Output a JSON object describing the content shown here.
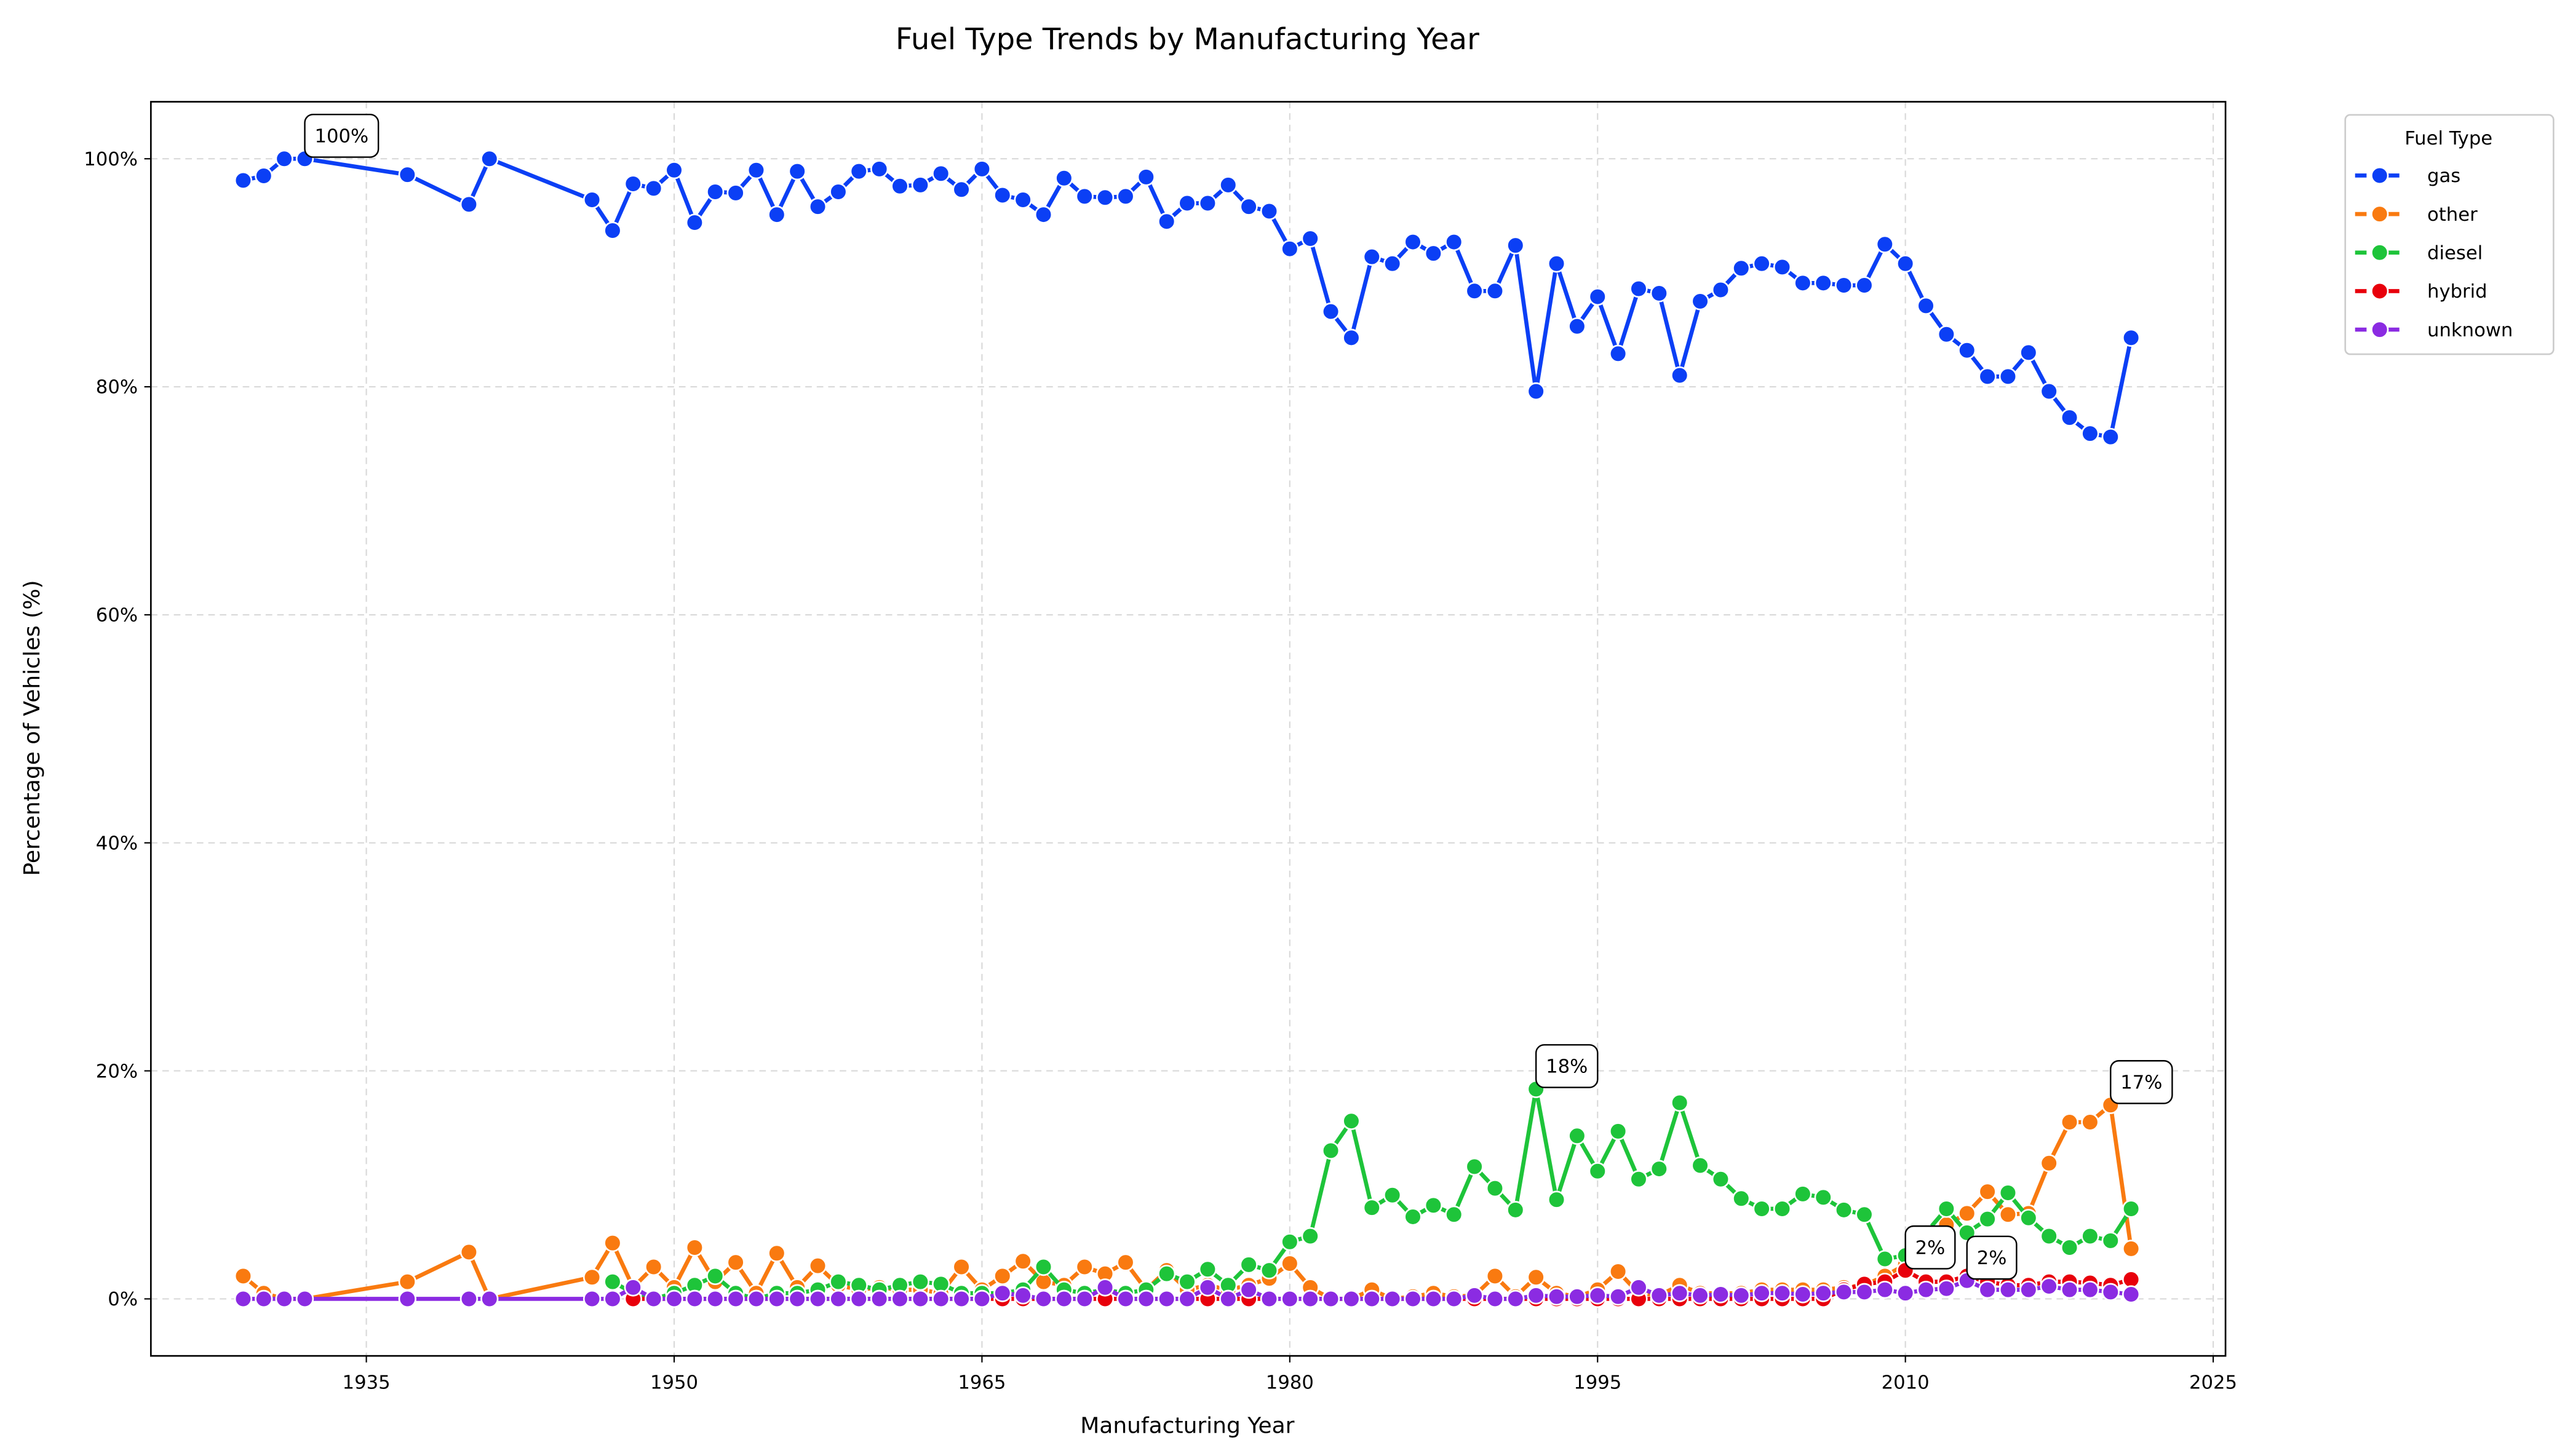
{
  "chart_data": {
    "type": "line",
    "title": "Fuel Type Trends by Manufacturing Year",
    "xlabel": "Manufacturing Year",
    "ylabel": "Percentage of Vehicles (%)",
    "legend_title": "Fuel Type",
    "legend_position": "outside upper right",
    "grid": true,
    "xlim": [
      1924.5,
      2025.6
    ],
    "ylim": [
      -5,
      105
    ],
    "xticks": [
      1935,
      1950,
      1965,
      1980,
      1995,
      2010,
      2025
    ],
    "yticks": [
      {
        "value": 0,
        "label": "0%"
      },
      {
        "value": 20,
        "label": "20%"
      },
      {
        "value": 40,
        "label": "40%"
      },
      {
        "value": 60,
        "label": "60%"
      },
      {
        "value": 80,
        "label": "80%"
      },
      {
        "value": 100,
        "label": "100%"
      }
    ],
    "x": [
      1929,
      1930,
      1931,
      1932,
      1937,
      1940,
      1941,
      1946,
      1947,
      1948,
      1949,
      1950,
      1951,
      1952,
      1953,
      1954,
      1955,
      1956,
      1957,
      1958,
      1959,
      1960,
      1961,
      1962,
      1963,
      1964,
      1965,
      1966,
      1967,
      1968,
      1969,
      1970,
      1971,
      1972,
      1973,
      1974,
      1975,
      1976,
      1977,
      1978,
      1979,
      1980,
      1981,
      1982,
      1983,
      1984,
      1985,
      1986,
      1987,
      1988,
      1989,
      1990,
      1991,
      1992,
      1993,
      1994,
      1995,
      1996,
      1997,
      1998,
      1999,
      2000,
      2001,
      2002,
      2003,
      2004,
      2005,
      2006,
      2007,
      2008,
      2009,
      2010,
      2011,
      2012,
      2013,
      2014,
      2015,
      2016,
      2017,
      2018,
      2019,
      2020,
      2021
    ],
    "series": [
      {
        "name": "gas",
        "color": "#0b3ff5",
        "values": [
          98.1,
          98.5,
          100,
          100,
          98.6,
          96,
          100,
          96.4,
          93.7,
          97.8,
          97.4,
          99,
          94.4,
          97.1,
          97,
          99,
          95.1,
          98.9,
          95.8,
          97.1,
          98.9,
          99.1,
          97.6,
          97.7,
          98.7,
          97.3,
          99.1,
          96.8,
          96.4,
          95.1,
          98.3,
          96.7,
          96.6,
          96.7,
          98.4,
          94.5,
          96.1,
          96.1,
          97.7,
          95.8,
          95.4,
          92.1,
          93,
          86.6,
          84.3,
          91.4,
          90.8,
          92.7,
          91.7,
          92.7,
          88.4,
          88.4,
          92.4,
          79.6,
          90.8,
          85.3,
          87.9,
          82.9,
          88.6,
          88.2,
          81,
          87.5,
          88.5,
          90.4,
          90.8,
          90.5,
          89.1,
          89.1,
          88.9,
          88.9,
          92.5,
          90.8,
          87.1,
          84.6,
          83.2,
          80.9,
          80.9,
          83,
          79.6,
          77.3,
          75.9,
          75.6,
          84.3
        ]
      },
      {
        "name": "other",
        "color": "#f97a10",
        "values": [
          2,
          0.5,
          0,
          0,
          1.5,
          4.1,
          0,
          1.9,
          4.9,
          1,
          2.8,
          1,
          4.5,
          1.5,
          3.2,
          0.5,
          4,
          1,
          2.9,
          1.2,
          0.8,
          1,
          0.8,
          0.8,
          0.5,
          2.8,
          0.8,
          2,
          3.3,
          1.5,
          1.2,
          2.8,
          2.2,
          3.2,
          0.8,
          2.5,
          0.8,
          1.2,
          0.8,
          1.2,
          1.8,
          3.1,
          1,
          0,
          0,
          0.8,
          0,
          0.2,
          0.5,
          0.2,
          0.3,
          2,
          0.2,
          1.9,
          0.5,
          0.2,
          0.8,
          2.4,
          0.5,
          0.3,
          1.2,
          0.5,
          0.5,
          0.5,
          0.8,
          0.8,
          0.8,
          0.8,
          1,
          1.2,
          2,
          3,
          5.5,
          6.5,
          7.5,
          9.4,
          7.4,
          7.5,
          11.9,
          15.5,
          15.5,
          17,
          4.4
        ]
      },
      {
        "name": "diesel",
        "color": "#1ec43a",
        "values": [
          null,
          null,
          null,
          null,
          null,
          null,
          null,
          null,
          1.5,
          0.5,
          0,
          0.5,
          1.2,
          2,
          0.5,
          0,
          0.5,
          0.5,
          0.8,
          1.5,
          1.2,
          0.8,
          1.2,
          1.5,
          1.3,
          0.5,
          0.5,
          0.5,
          0.8,
          2.8,
          0.8,
          0.5,
          0.8,
          0.5,
          0.8,
          2.2,
          1.5,
          2.6,
          1.2,
          3,
          2.5,
          5,
          5.5,
          13,
          15.6,
          8,
          9.1,
          7.2,
          8.2,
          7.4,
          11.6,
          9.7,
          7.8,
          18.4,
          8.7,
          14.3,
          11.2,
          14.7,
          10.5,
          11.4,
          17.2,
          11.7,
          10.5,
          8.8,
          7.9,
          7.9,
          9.2,
          8.9,
          7.8,
          7.4,
          3.5,
          3.8,
          5.8,
          7.9,
          5.8,
          7,
          9.3,
          7.1,
          5.5,
          4.5,
          5.5,
          5.1,
          7.9
        ]
      },
      {
        "name": "hybrid",
        "color": "#e8000b",
        "values": [
          null,
          null,
          null,
          null,
          null,
          null,
          null,
          null,
          null,
          0,
          0,
          0,
          0,
          0,
          0,
          0,
          0,
          0,
          0,
          0,
          0,
          0,
          0,
          0,
          0,
          0,
          0,
          0,
          0,
          0,
          0,
          0,
          0,
          0,
          0,
          0,
          0,
          0,
          0,
          0,
          0,
          0,
          0,
          0,
          0,
          0,
          0,
          0,
          0,
          0,
          0,
          0,
          0,
          0,
          0,
          0,
          0,
          0,
          0,
          0,
          0,
          0,
          0,
          0,
          0,
          0,
          0,
          0,
          0.8,
          1.3,
          1.5,
          2.5,
          1.5,
          1.5,
          2,
          1.5,
          1.2,
          1.2,
          1.5,
          1.5,
          1.4,
          1.2,
          1.7
        ]
      },
      {
        "name": "unknown",
        "color": "#8b2be2",
        "values": [
          0,
          0,
          0,
          0,
          0,
          0,
          0,
          0,
          0,
          1,
          0,
          0,
          0,
          0,
          0,
          0,
          0,
          0,
          0,
          0,
          0,
          0,
          0,
          0,
          0,
          0,
          0,
          0.5,
          0.3,
          0,
          0,
          0,
          1,
          0,
          0,
          0,
          0,
          1,
          0,
          0.8,
          0,
          0,
          0,
          0,
          0,
          0,
          0,
          0,
          0,
          0,
          0.3,
          0,
          0,
          0.3,
          0.2,
          0.2,
          0.3,
          0.2,
          1,
          0.3,
          0.5,
          0.3,
          0.4,
          0.3,
          0.5,
          0.5,
          0.4,
          0.5,
          0.6,
          0.6,
          0.8,
          0.5,
          0.8,
          0.9,
          1.6,
          0.8,
          0.8,
          0.8,
          1.1,
          0.8,
          0.8,
          0.6,
          0.4
        ]
      }
    ],
    "annotations": [
      {
        "text": "100%",
        "x": 1932,
        "y": 100
      },
      {
        "text": "18%",
        "x": 1992,
        "y": 18.4
      },
      {
        "text": "17%",
        "x": 2020,
        "y": 17
      },
      {
        "text": "2%",
        "x": 2010,
        "y": 2.5
      },
      {
        "text": "2%",
        "x": 2013,
        "y": 1.6
      }
    ]
  }
}
